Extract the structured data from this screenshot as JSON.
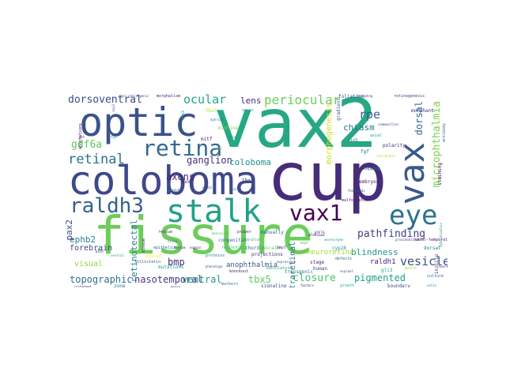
{
  "words": [
    {
      "text": "fissure",
      "color": "#6ccd5a"
    },
    {
      "text": "cup",
      "color": "#472c7a"
    },
    {
      "text": "vax2",
      "color": "#26a884"
    },
    {
      "text": "coloboma",
      "color": "#3f4889"
    },
    {
      "text": "optic",
      "color": "#3b528b"
    },
    {
      "text": "stalk",
      "color": "#1fa187"
    },
    {
      "text": "vax1",
      "color": "#440154"
    },
    {
      "text": "vax",
      "color": "#375a8c"
    },
    {
      "text": "eye",
      "color": "#2c728e"
    },
    {
      "text": "retina",
      "color": "#31688e"
    },
    {
      "text": "raldh3",
      "color": "#35608d"
    },
    {
      "text": "periocular",
      "color": "#6ece58"
    },
    {
      "text": "ocular",
      "color": "#22a785"
    },
    {
      "text": "lens",
      "color": "#482878"
    },
    {
      "text": "retinal",
      "color": "#2d708e"
    },
    {
      "text": "microphthalmia",
      "color": "#7ad151"
    },
    {
      "text": "dorsoventral",
      "color": "#3e4a89"
    },
    {
      "text": "ganglion",
      "color": "#46327e"
    },
    {
      "text": "axons",
      "color": "#481f70"
    },
    {
      "text": "gdf6a",
      "color": "#5ec962"
    },
    {
      "text": "coloboma",
      "color": "#20928c"
    },
    {
      "text": "vesicle",
      "color": "#3b528b"
    },
    {
      "text": "rpe",
      "color": "#355f8d"
    },
    {
      "text": "chiasm",
      "color": "#29788e"
    },
    {
      "text": "pathfinding",
      "color": "#433e85"
    },
    {
      "text": "ephb2",
      "color": "#277f8e"
    },
    {
      "text": "pax2",
      "color": "#404688"
    },
    {
      "text": "retinotectal",
      "color": "#25848e"
    },
    {
      "text": "bmp",
      "color": "#472d7b"
    },
    {
      "text": "forebrain",
      "color": "#3f4788"
    },
    {
      "text": "visual",
      "color": "#8fd744"
    },
    {
      "text": "blindness",
      "color": "#1f948c"
    },
    {
      "text": "raldh1",
      "color": "#482071"
    },
    {
      "text": "topographic",
      "color": "#2d708e"
    },
    {
      "text": "nasotemporal",
      "color": "#443a83"
    },
    {
      "text": "ventral",
      "color": "#1e9b8a"
    },
    {
      "text": "tbx5",
      "color": "#5cc863"
    },
    {
      "text": "closure",
      "color": "#4ac16d"
    },
    {
      "text": "pigmented",
      "color": "#20a386"
    },
    {
      "text": "anophthalmia",
      "color": "#3a548c"
    },
    {
      "text": "intraretinal",
      "color": "#2a768e"
    },
    {
      "text": "neuroretina",
      "color": "#a0da39"
    },
    {
      "text": "dorsal",
      "color": "#2f6c8e"
    },
    {
      "text": "morphogenesis",
      "color": "#d0e11c"
    }
  ],
  "small_words": [
    {
      "text": "anti-retinogenic",
      "color": "#3e4989"
    },
    {
      "text": "morphalism",
      "color": "#482475"
    },
    {
      "text": "tbx5",
      "color": "#c2df23"
    },
    {
      "text": "ephrinb",
      "color": "#26818e"
    },
    {
      "text": "annotations",
      "color": "#471063"
    },
    {
      "text": "midline",
      "color": "#7fd34e"
    },
    {
      "text": "glial",
      "color": "#21918c"
    },
    {
      "text": "sonic",
      "color": "#2b758e"
    },
    {
      "text": "foliation",
      "color": "#3d4e8a"
    },
    {
      "text": "hedgehog",
      "color": "#365c8d"
    },
    {
      "text": "retinogenesis",
      "color": "#433d84"
    },
    {
      "text": "morphant",
      "color": "#472f7d"
    },
    {
      "text": "communities",
      "color": "#3c508b"
    },
    {
      "text": "axial",
      "color": "#1fa088"
    },
    {
      "text": "polarity",
      "color": "#482878"
    },
    {
      "text": "searchable",
      "color": "#b5de2b"
    },
    {
      "text": "mapping",
      "color": "#2a778e"
    },
    {
      "text": "embryos",
      "color": "#471365"
    },
    {
      "text": "thousands",
      "color": "#3b528b"
    },
    {
      "text": "malformation",
      "color": "#481a6c"
    },
    {
      "text": "congenital",
      "color": "#2c718e"
    },
    {
      "text": "zebrafish",
      "color": "#1f988b"
    },
    {
      "text": "retinotopic",
      "color": "#35b779"
    },
    {
      "text": "projections",
      "color": "#46327e"
    },
    {
      "text": "cilia",
      "color": "#39568c"
    },
    {
      "text": "epithelium",
      "color": "#2e6e8e"
    },
    {
      "text": "neural",
      "color": "#fde725"
    },
    {
      "text": "tectum",
      "color": "#481769"
    },
    {
      "text": "proteins",
      "color": "#277e8e"
    },
    {
      "text": "brain",
      "color": "#6ccd5a"
    },
    {
      "text": "expression",
      "color": "#3d4d8a"
    },
    {
      "text": "vasculature",
      "color": "#25ac82"
    },
    {
      "text": "stage",
      "color": "#482677"
    },
    {
      "text": "mesenchyme",
      "color": "#22a884"
    },
    {
      "text": "defects",
      "color": "#31668e"
    },
    {
      "text": "human",
      "color": "#404387"
    },
    {
      "text": "proximodistal",
      "color": "#3e4a89"
    },
    {
      "text": "nasal-temporal",
      "color": "#471164"
    },
    {
      "text": "dorsal",
      "color": "#2a788e"
    },
    {
      "text": "network",
      "color": "#46307e"
    },
    {
      "text": "pools",
      "color": "#9dd93b"
    },
    {
      "text": "gli3",
      "color": "#1f9e89"
    },
    {
      "text": "monocular",
      "color": "#44bf70"
    },
    {
      "text": "proper",
      "color": "#472a7a"
    },
    {
      "text": "manually",
      "color": "#34618d"
    },
    {
      "text": "paola",
      "color": "#3a538b"
    },
    {
      "text": "rescue",
      "color": "#482173"
    },
    {
      "text": "shh",
      "color": "#365d8d"
    },
    {
      "text": "ventral",
      "color": "#1fa187"
    },
    {
      "text": "curated",
      "color": "#453781"
    },
    {
      "text": "zone",
      "color": "#2b748e"
    },
    {
      "text": "mouse",
      "color": "#481b6d"
    },
    {
      "text": "markers",
      "color": "#287d8e"
    },
    {
      "text": "signaling",
      "color": "#3d4e8a"
    },
    {
      "text": "factors",
      "color": "#482576"
    },
    {
      "text": "growth",
      "color": "#29af7f"
    },
    {
      "text": "boundary",
      "color": "#3f4889"
    },
    {
      "text": "cells",
      "color": "#2d718e"
    },
    {
      "text": "tissue",
      "color": "#470e61"
    },
    {
      "text": "gradient",
      "color": "#35608d"
    },
    {
      "text": "sox2",
      "color": "#433e85"
    },
    {
      "text": "otx2",
      "color": "#1f9a8a"
    },
    {
      "text": "mitf",
      "color": "#482878"
    },
    {
      "text": "rax",
      "color": "#75d054"
    },
    {
      "text": "six3",
      "color": "#3b528b"
    },
    {
      "text": "fgf",
      "color": "#2e6f8e"
    },
    {
      "text": "wnt",
      "color": "#46337f"
    },
    {
      "text": "tgf",
      "color": "#20a386"
    },
    {
      "text": "hox",
      "color": "#481467"
    },
    {
      "text": "efnb2",
      "color": "#38588c"
    },
    {
      "text": "ephb3",
      "color": "#31678e"
    },
    {
      "text": "tbx2",
      "color": "#3f4788"
    },
    {
      "text": "tbx3",
      "color": "#2a788e"
    },
    {
      "text": "aldh1a2",
      "color": "#481d6f"
    },
    {
      "text": "cyp26",
      "color": "#1f958b"
    },
    {
      "text": "bmp4",
      "color": "#5ac864"
    },
    {
      "text": "bmp7",
      "color": "#443983"
    },
    {
      "text": "chordin",
      "color": "#2c738e"
    },
    {
      "text": "noggin",
      "color": "#482475"
    },
    {
      "text": "follistatin",
      "color": "#365d8d"
    },
    {
      "text": "mutations",
      "color": "#22a785"
    },
    {
      "text": "phenotype",
      "color": "#3d4d8a"
    },
    {
      "text": "knockout",
      "color": "#471365"
    },
    {
      "text": "transgenic",
      "color": "#29798e"
    },
    {
      "text": "explant",
      "color": "#3e4c8a"
    },
    {
      "text": "culture",
      "color": "#2f6b8e"
    },
    {
      "text": "in situ",
      "color": "#482979"
    },
    {
      "text": "hybridization",
      "color": "#25838e"
    },
    {
      "text": "antibody",
      "color": "#31688e"
    },
    {
      "text": "staining",
      "color": "#440154"
    }
  ]
}
